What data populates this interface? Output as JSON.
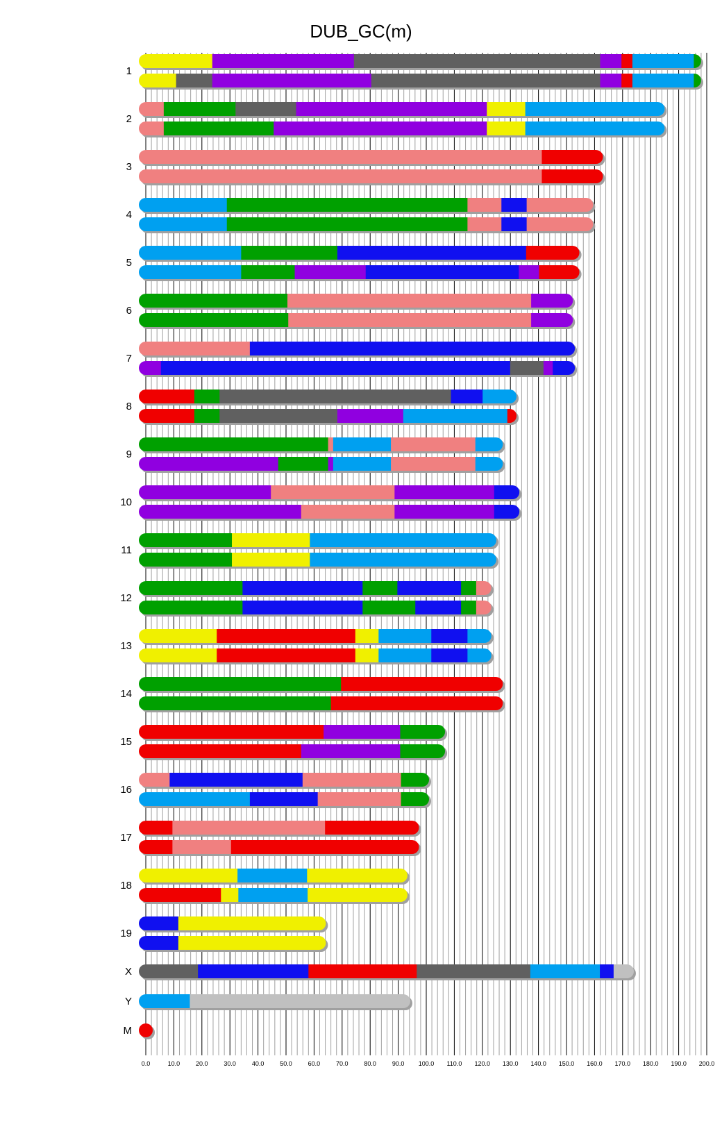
{
  "chart_data": {
    "type": "chromosome-painting",
    "title": "DUB_GC(m)",
    "xlim": [
      0,
      200
    ],
    "x_ticks": [
      "0.0",
      "10.0",
      "20.0",
      "30.0",
      "40.0",
      "50.0",
      "60.0",
      "70.0",
      "80.0",
      "90.0",
      "100.0",
      "110.0",
      "120.0",
      "130.0",
      "140.0",
      "150.0",
      "160.0",
      "170.0",
      "180.0",
      "190.0",
      "200.0"
    ],
    "grid": "vertical, minor every 2, major every 10",
    "palette": {
      "yellow": "#f0f000",
      "purple": "#9000e0",
      "gray": "#606060",
      "red": "#f00000",
      "lightblue": "#00a0f0",
      "green": "#00a000",
      "salmon": "#f08080",
      "blue": "#1010f0",
      "lightgray": "#c0c0c0"
    },
    "chromosomes": [
      {
        "label": "1",
        "rows": [
          [
            [
              "yellow",
              23.7
            ],
            [
              "purple",
              74.2
            ],
            [
              "gray",
              162
            ],
            [
              "purple",
              169.6
            ],
            [
              "red",
              173.5
            ],
            [
              "lightblue",
              195.4
            ],
            [
              "green",
              198
            ]
          ],
          [
            [
              "yellow",
              10.8
            ],
            [
              "gray",
              23.7
            ],
            [
              "purple",
              80.4
            ],
            [
              "gray",
              162
            ],
            [
              "purple",
              169.6
            ],
            [
              "red",
              173.5
            ],
            [
              "lightblue",
              195.4
            ],
            [
              "green",
              198
            ]
          ]
        ]
      },
      {
        "label": "2",
        "rows": [
          [
            [
              "salmon",
              6.4
            ],
            [
              "green",
              32
            ],
            [
              "gray",
              53.6
            ],
            [
              "purple",
              121.6
            ],
            [
              "yellow",
              135.3
            ],
            [
              "lightblue",
              185
            ]
          ],
          [
            [
              "salmon",
              6.4
            ],
            [
              "green",
              45.6
            ],
            [
              "purple",
              121.6
            ],
            [
              "yellow",
              135.3
            ],
            [
              "lightblue",
              185
            ]
          ]
        ]
      },
      {
        "label": "3",
        "rows": [
          [
            [
              "salmon",
              141.2
            ],
            [
              "red",
              163
            ]
          ],
          [
            [
              "salmon",
              141.2
            ],
            [
              "red",
              163
            ]
          ]
        ]
      },
      {
        "label": "4",
        "rows": [
          [
            [
              "lightblue",
              28.9
            ],
            [
              "green",
              114.7
            ],
            [
              "salmon",
              126.8
            ],
            [
              "blue",
              135.8
            ],
            [
              "salmon",
              159.5
            ]
          ],
          [
            [
              "lightblue",
              28.9
            ],
            [
              "green",
              114.7
            ],
            [
              "salmon",
              126.8
            ],
            [
              "blue",
              135.8
            ],
            [
              "salmon",
              159.5
            ]
          ]
        ]
      },
      {
        "label": "5",
        "rows": [
          [
            [
              "lightblue",
              34
            ],
            [
              "green",
              68.3
            ],
            [
              "blue",
              135.6
            ],
            [
              "red",
              154.6
            ]
          ],
          [
            [
              "lightblue",
              34
            ],
            [
              "green",
              53.1
            ],
            [
              "purple",
              78.4
            ],
            [
              "blue",
              133
            ],
            [
              "purple",
              140.2
            ],
            [
              "red",
              154.6
            ]
          ]
        ]
      },
      {
        "label": "6",
        "rows": [
          [
            [
              "green",
              50.5
            ],
            [
              "salmon",
              137.4
            ],
            [
              "purple",
              152.3
            ]
          ],
          [
            [
              "green",
              50.8
            ],
            [
              "salmon",
              137.4
            ],
            [
              "purple",
              152.3
            ]
          ]
        ]
      },
      {
        "label": "7",
        "rows": [
          [
            [
              "salmon",
              37.1
            ],
            [
              "blue",
              153
            ]
          ],
          [
            [
              "purple",
              5.4
            ],
            [
              "blue",
              129.9
            ],
            [
              "gray",
              141.8
            ],
            [
              "purple",
              145.1
            ],
            [
              "blue",
              153
            ]
          ]
        ]
      },
      {
        "label": "8",
        "rows": [
          [
            [
              "red",
              17.3
            ],
            [
              "green",
              26.3
            ],
            [
              "gray",
              108.8
            ],
            [
              "blue",
              120.1
            ],
            [
              "lightblue",
              132.2
            ]
          ],
          [
            [
              "red",
              17.3
            ],
            [
              "green",
              26.3
            ],
            [
              "gray",
              68.3
            ],
            [
              "purple",
              91.8
            ],
            [
              "lightblue",
              128.9
            ],
            [
              "red",
              132.2
            ]
          ]
        ]
      },
      {
        "label": "9",
        "rows": [
          [
            [
              "green",
              65
            ],
            [
              "salmon",
              66.8
            ],
            [
              "lightblue",
              87.4
            ],
            [
              "salmon",
              117.5
            ],
            [
              "lightblue",
              127.3
            ]
          ],
          [
            [
              "purple",
              47.2
            ],
            [
              "green",
              65
            ],
            [
              "purple",
              66.8
            ],
            [
              "lightblue",
              87.4
            ],
            [
              "salmon",
              117.5
            ],
            [
              "lightblue",
              127.3
            ]
          ]
        ]
      },
      {
        "label": "10",
        "rows": [
          [
            [
              "purple",
              44.6
            ],
            [
              "salmon",
              88.7
            ],
            [
              "purple",
              124.2
            ],
            [
              "blue",
              133.2
            ]
          ],
          [
            [
              "purple",
              55.4
            ],
            [
              "salmon",
              88.7
            ],
            [
              "purple",
              124.2
            ],
            [
              "blue",
              133.2
            ]
          ]
        ]
      },
      {
        "label": "11",
        "rows": [
          [
            [
              "green",
              30.7
            ],
            [
              "yellow",
              58.5
            ],
            [
              "lightblue",
              125
            ]
          ],
          [
            [
              "green",
              30.7
            ],
            [
              "yellow",
              58.5
            ],
            [
              "lightblue",
              125
            ]
          ]
        ]
      },
      {
        "label": "12",
        "rows": [
          [
            [
              "green",
              34.5
            ],
            [
              "blue",
              77.3
            ],
            [
              "green",
              89.7
            ],
            [
              "blue",
              112.4
            ],
            [
              "green",
              117.8
            ],
            [
              "salmon",
              123.2
            ]
          ],
          [
            [
              "green",
              34.5
            ],
            [
              "blue",
              77.3
            ],
            [
              "green",
              96.1
            ],
            [
              "blue",
              112.4
            ],
            [
              "green",
              117.8
            ],
            [
              "salmon",
              123.2
            ]
          ]
        ]
      },
      {
        "label": "13",
        "rows": [
          [
            [
              "yellow",
              25.3
            ],
            [
              "red",
              74.7
            ],
            [
              "yellow",
              83
            ],
            [
              "lightblue",
              101.8
            ],
            [
              "blue",
              114.7
            ],
            [
              "lightblue",
              123.2
            ]
          ],
          [
            [
              "yellow",
              25.3
            ],
            [
              "red",
              74.7
            ],
            [
              "yellow",
              83
            ],
            [
              "lightblue",
              101.8
            ],
            [
              "blue",
              114.7
            ],
            [
              "lightblue",
              123.2
            ]
          ]
        ]
      },
      {
        "label": "14",
        "rows": [
          [
            [
              "green",
              69.6
            ],
            [
              "red",
              127.3
            ]
          ],
          [
            [
              "green",
              66
            ],
            [
              "red",
              127.3
            ]
          ]
        ]
      },
      {
        "label": "15",
        "rows": [
          [
            [
              "red",
              63.4
            ],
            [
              "purple",
              90.7
            ],
            [
              "green",
              106.7
            ]
          ],
          [
            [
              "red",
              55.4
            ],
            [
              "purple",
              90.7
            ],
            [
              "green",
              106.7
            ]
          ]
        ]
      },
      {
        "label": "16",
        "rows": [
          [
            [
              "salmon",
              8.5
            ],
            [
              "blue",
              55.9
            ],
            [
              "salmon",
              91
            ],
            [
              "green",
              101
            ]
          ],
          [
            [
              "lightblue",
              37.1
            ],
            [
              "blue",
              61.3
            ],
            [
              "salmon",
              91
            ],
            [
              "green",
              101
            ]
          ]
        ]
      },
      {
        "label": "17",
        "rows": [
          [
            [
              "red",
              9.5
            ],
            [
              "salmon",
              63.9
            ],
            [
              "red",
              97.4
            ]
          ],
          [
            [
              "red",
              9.5
            ],
            [
              "salmon",
              30.4
            ],
            [
              "red",
              97.4
            ]
          ]
        ]
      },
      {
        "label": "18",
        "rows": [
          [
            [
              "yellow",
              32.7
            ],
            [
              "lightblue",
              57.5
            ],
            [
              "yellow",
              93.3
            ]
          ],
          [
            [
              "red",
              26.8
            ],
            [
              "yellow",
              33
            ],
            [
              "lightblue",
              57.7
            ],
            [
              "yellow",
              93.3
            ]
          ]
        ]
      },
      {
        "label": "19",
        "rows": [
          [
            [
              "blue",
              11.6
            ],
            [
              "yellow",
              64.2
            ]
          ],
          [
            [
              "blue",
              11.6
            ],
            [
              "yellow",
              64.2
            ]
          ]
        ]
      },
      {
        "label": "X",
        "rows": [
          [
            [
              "gray",
              18.6
            ],
            [
              "blue",
              58
            ],
            [
              "red",
              96.6
            ],
            [
              "gray",
              137.1
            ],
            [
              "lightblue",
              161.9
            ],
            [
              "blue",
              166.8
            ],
            [
              "lightgray",
              174
            ]
          ]
        ]
      },
      {
        "label": "Y",
        "rows": [
          [
            [
              "lightblue",
              15.7
            ],
            [
              "lightgray",
              94.3
            ]
          ]
        ]
      },
      {
        "label": "M",
        "rows": [
          [
            [
              "red",
              0.3
            ]
          ]
        ]
      }
    ]
  }
}
